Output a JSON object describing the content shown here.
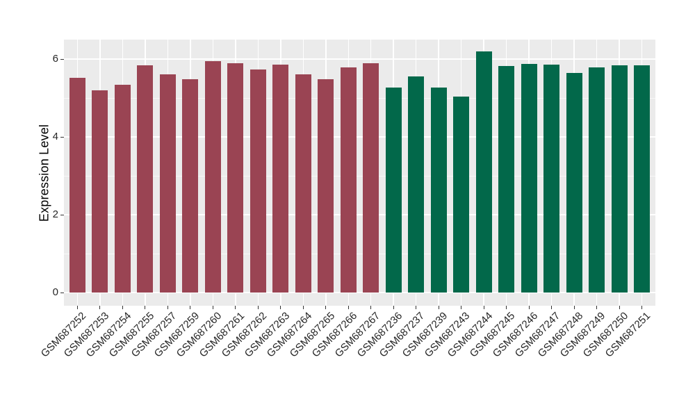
{
  "figure": {
    "background": "#ffffff",
    "panel_background": "#EBEBEB",
    "grid_major_color": "#ffffff",
    "grid_minor_color": "rgba(255,255,255,0.65)",
    "tick_mark_color": "#333333",
    "tick_text_color": "#262626",
    "axis_title_color": "#000000"
  },
  "chart_data": {
    "type": "bar",
    "title": "",
    "xlabel": "",
    "ylabel": "Expression Level",
    "ylim": [
      0,
      6.5
    ],
    "yticks_major": [
      0,
      2,
      4,
      6
    ],
    "yticks_minor": [
      1,
      3,
      5
    ],
    "grid": "on",
    "legend": "none",
    "x_label_angle_deg": 45,
    "categories": [
      "GSM687252",
      "GSM687253",
      "GSM687254",
      "GSM687255",
      "GSM687257",
      "GSM687259",
      "GSM687260",
      "GSM687261",
      "GSM687262",
      "GSM687263",
      "GSM687264",
      "GSM687265",
      "GSM687266",
      "GSM687267",
      "GSM687236",
      "GSM687237",
      "GSM687239",
      "GSM687243",
      "GSM687244",
      "GSM687245",
      "GSM687246",
      "GSM687247",
      "GSM687248",
      "GSM687249",
      "GSM687250",
      "GSM687251"
    ],
    "values": [
      5.52,
      5.2,
      5.34,
      5.84,
      5.6,
      5.48,
      5.94,
      5.89,
      5.73,
      5.85,
      5.61,
      5.49,
      5.79,
      5.9,
      5.27,
      5.55,
      5.27,
      5.03,
      6.2,
      5.82,
      5.87,
      5.85,
      5.65,
      5.79,
      5.84,
      5.84
    ],
    "bar_groups": [
      "group1",
      "group1",
      "group1",
      "group1",
      "group1",
      "group1",
      "group1",
      "group1",
      "group1",
      "group1",
      "group1",
      "group1",
      "group1",
      "group1",
      "group2",
      "group2",
      "group2",
      "group2",
      "group2",
      "group2",
      "group2",
      "group2",
      "group2",
      "group2",
      "group2",
      "group2"
    ],
    "group_colors": {
      "group1": "#9a4453",
      "group2": "#02684a"
    }
  }
}
